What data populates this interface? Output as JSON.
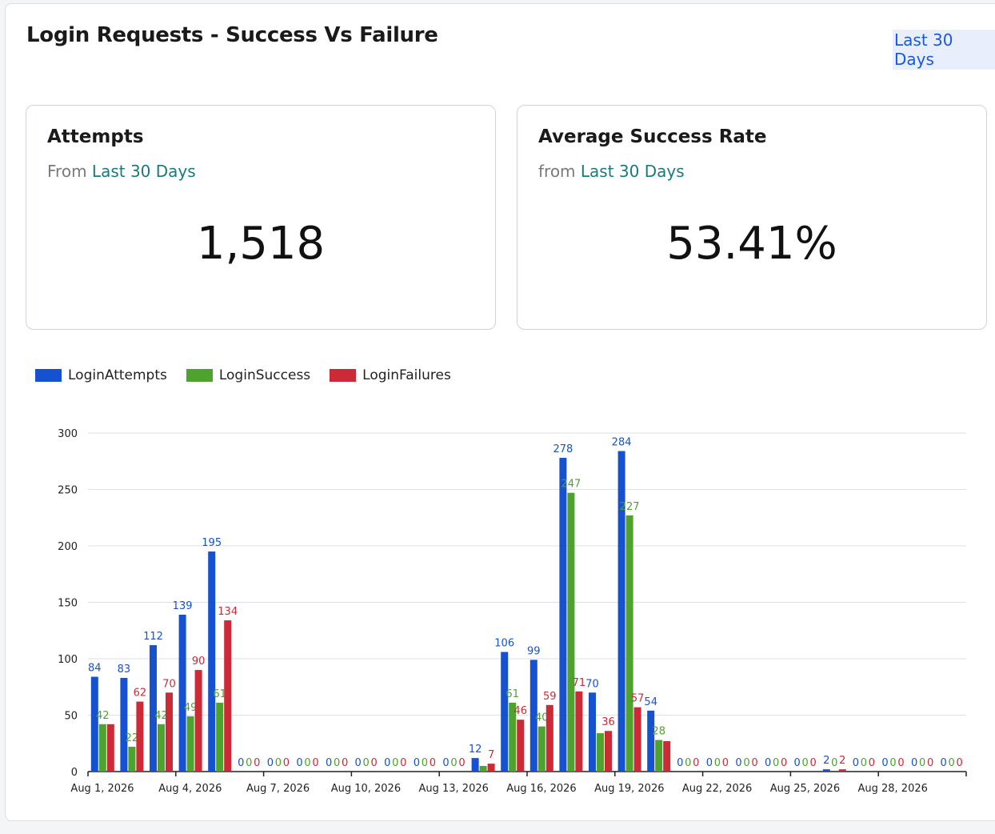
{
  "header": {
    "title": "Login Requests - Success Vs Failure",
    "range_link": "Last 30 Days"
  },
  "cards": {
    "attempts": {
      "title": "Attempts",
      "sub_prefix": "From",
      "sub_range": "Last 30 Days",
      "value": "1,518"
    },
    "success_rate": {
      "title": "Average Success Rate",
      "sub_prefix": "from",
      "sub_range": "Last 30 Days",
      "value": "53.41%"
    }
  },
  "colors": {
    "attempts": "#1652cf",
    "success": "#4ea22e",
    "failures": "#cc2a37",
    "grid": "#dcdfe6",
    "axis": "#222222"
  },
  "chart_data": {
    "type": "bar",
    "categories": [
      "Aug 1, 2026",
      "Aug 2, 2026",
      "Aug 3, 2026",
      "Aug 4, 2026",
      "Aug 5, 2026",
      "Aug 6, 2026",
      "Aug 7, 2026",
      "Aug 8, 2026",
      "Aug 9, 2026",
      "Aug 10, 2026",
      "Aug 11, 2026",
      "Aug 12, 2026",
      "Aug 13, 2026",
      "Aug 14, 2026",
      "Aug 15, 2026",
      "Aug 16, 2026",
      "Aug 17, 2026",
      "Aug 18, 2026",
      "Aug 19, 2026",
      "Aug 20, 2026",
      "Aug 21, 2026",
      "Aug 22, 2026",
      "Aug 23, 2026",
      "Aug 24, 2026",
      "Aug 25, 2026",
      "Aug 26, 2026",
      "Aug 27, 2026",
      "Aug 28, 2026",
      "Aug 29, 2026",
      "Aug 30, 2026"
    ],
    "x_tick_labels": [
      "Aug 1, 2026",
      "Aug 4, 2026",
      "Aug 7, 2026",
      "Aug 10, 2026",
      "Aug 13, 2026",
      "Aug 16, 2026",
      "Aug 19, 2026",
      "Aug 22, 2026",
      "Aug 25, 2026",
      "Aug 28, 2026"
    ],
    "series": [
      {
        "name": "LoginAttempts",
        "color": "#1652cf",
        "values": [
          84,
          83,
          112,
          139,
          195,
          0,
          0,
          0,
          0,
          0,
          0,
          0,
          0,
          12,
          106,
          99,
          278,
          70,
          284,
          54,
          0,
          0,
          0,
          0,
          0,
          2,
          0,
          0,
          0,
          0
        ]
      },
      {
        "name": "LoginSuccess",
        "color": "#4ea22e",
        "values": [
          42,
          22,
          42,
          49,
          61,
          0,
          0,
          0,
          0,
          0,
          0,
          0,
          0,
          5,
          61,
          40,
          247,
          34,
          227,
          28,
          0,
          0,
          0,
          0,
          0,
          0,
          0,
          0,
          0,
          0
        ]
      },
      {
        "name": "LoginFailures",
        "color": "#cc2a37",
        "values": [
          42,
          62,
          70,
          90,
          134,
          0,
          0,
          0,
          0,
          0,
          0,
          0,
          0,
          7,
          46,
          59,
          71,
          36,
          57,
          27,
          0,
          0,
          0,
          0,
          0,
          2,
          0,
          0,
          0,
          0
        ]
      }
    ],
    "value_labels": [
      [
        84,
        83,
        112,
        139,
        195,
        0,
        0,
        0,
        0,
        0,
        0,
        0,
        0,
        12,
        106,
        99,
        278,
        70,
        284,
        54,
        0,
        0,
        0,
        0,
        0,
        2,
        0,
        0,
        0,
        0
      ],
      [
        42,
        22,
        42,
        49,
        61,
        0,
        0,
        0,
        0,
        0,
        0,
        0,
        0,
        null,
        61,
        40,
        247,
        null,
        227,
        28,
        0,
        0,
        0,
        0,
        0,
        0,
        0,
        0,
        0,
        0
      ],
      [
        null,
        62,
        70,
        90,
        134,
        0,
        0,
        0,
        0,
        0,
        0,
        0,
        0,
        7,
        46,
        59,
        71,
        36,
        57,
        null,
        0,
        0,
        0,
        0,
        0,
        2,
        0,
        0,
        0,
        0
      ]
    ],
    "yticks": [
      0,
      50,
      100,
      150,
      200,
      250,
      300
    ],
    "ylim": [
      0,
      300
    ],
    "xlabel": "",
    "ylabel": "",
    "legend": "top-left",
    "grid": true
  }
}
